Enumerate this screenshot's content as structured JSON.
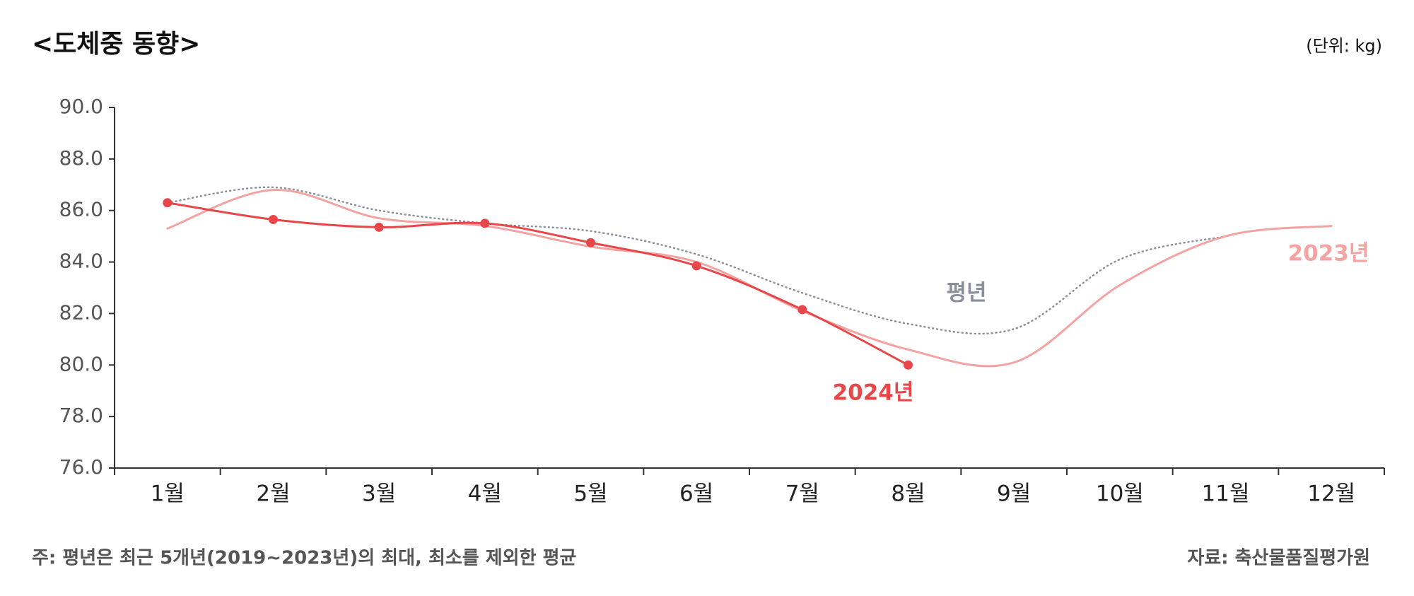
{
  "chart_data": {
    "type": "line",
    "title": "<도체중 동향>",
    "unit": "(단위: kg)",
    "footnote": "주: 평년은 최근 5개년(2019~2023년)의 최대, 최소를 제외한 평균",
    "source": "자료: 축산물품질평가원",
    "categories": [
      "1월",
      "2월",
      "3월",
      "4월",
      "5월",
      "6월",
      "7월",
      "8월",
      "9월",
      "10월",
      "11월",
      "12월"
    ],
    "series": [
      {
        "name": "평년",
        "color": "#8a8f99",
        "style": "dotted",
        "values": [
          86.3,
          86.9,
          86.0,
          85.5,
          85.2,
          84.3,
          82.8,
          81.6,
          81.4,
          84.1,
          85.0,
          null
        ]
      },
      {
        "name": "2023년",
        "color": "#f4a3a3",
        "style": "solid",
        "values": [
          85.3,
          86.8,
          85.7,
          85.4,
          84.6,
          84.0,
          82.1,
          80.6,
          80.1,
          83.1,
          85.0,
          85.4
        ]
      },
      {
        "name": "2024년",
        "color": "#e8474a",
        "style": "solid",
        "markers": true,
        "values": [
          86.3,
          85.65,
          85.35,
          85.5,
          84.75,
          83.85,
          82.15,
          80.0,
          null,
          null,
          null,
          null
        ]
      }
    ],
    "ylim": [
      76,
      90
    ],
    "yticks": [
      {
        "value": 76,
        "label": "76.0"
      },
      {
        "value": 78,
        "label": "78.0"
      },
      {
        "value": 80,
        "label": "80.0"
      },
      {
        "value": 82,
        "label": "82.0"
      },
      {
        "value": 84,
        "label": "84.0"
      },
      {
        "value": 86,
        "label": "86.0"
      },
      {
        "value": 88,
        "label": "88.0"
      },
      {
        "value": 90,
        "label": "90.0"
      }
    ],
    "grid": false
  }
}
